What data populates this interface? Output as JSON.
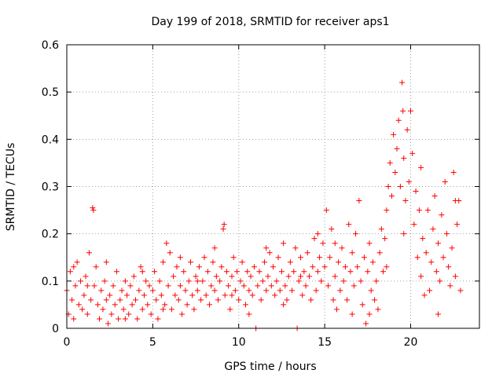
{
  "chart_data": {
    "type": "scatter",
    "title": "Day 199 of 2018, SRMTID for receiver aps1",
    "xlabel": "GPS time / hours",
    "ylabel": "SRMTID / TECUs",
    "xlim": [
      0,
      24
    ],
    "ylim": [
      0,
      0.6
    ],
    "x_ticks": [
      0,
      5,
      10,
      15,
      20
    ],
    "y_ticks": [
      0,
      0.1,
      0.2,
      0.3,
      0.4,
      0.5,
      0.6
    ],
    "y_tick_labels": [
      "0",
      "0.1",
      "0.2",
      "0.3",
      "0.4",
      "0.5",
      "0.6"
    ],
    "grid": true,
    "marker": "+",
    "series": [
      {
        "name": "SRMTID",
        "color": "#ff0000",
        "points": [
          [
            0.0,
            0.08
          ],
          [
            0.1,
            0.03
          ],
          [
            0.2,
            0.12
          ],
          [
            0.3,
            0.06
          ],
          [
            0.4,
            0.02
          ],
          [
            0.5,
            0.09
          ],
          [
            0.6,
            0.14
          ],
          [
            0.7,
            0.05
          ],
          [
            0.8,
            0.1
          ],
          [
            0.9,
            0.04
          ],
          [
            1.0,
            0.07
          ],
          [
            1.1,
            0.11
          ],
          [
            1.2,
            0.03
          ],
          [
            1.3,
            0.16
          ],
          [
            1.4,
            0.06
          ],
          [
            1.5,
            0.255
          ],
          [
            1.55,
            0.25
          ],
          [
            1.6,
            0.09
          ],
          [
            1.7,
            0.13
          ],
          [
            1.8,
            0.05
          ],
          [
            1.9,
            0.02
          ],
          [
            2.0,
            0.08
          ],
          [
            2.1,
            0.04
          ],
          [
            2.2,
            0.1
          ],
          [
            2.3,
            0.06
          ],
          [
            2.4,
            0.01
          ],
          [
            2.5,
            0.07
          ],
          [
            2.6,
            0.03
          ],
          [
            2.7,
            0.09
          ],
          [
            2.8,
            0.05
          ],
          [
            2.9,
            0.12
          ],
          [
            3.0,
            0.02
          ],
          [
            3.1,
            0.06
          ],
          [
            3.2,
            0.08
          ],
          [
            3.3,
            0.04
          ],
          [
            3.4,
            0.1
          ],
          [
            3.5,
            0.07
          ],
          [
            3.6,
            0.03
          ],
          [
            3.7,
            0.09
          ],
          [
            3.8,
            0.05
          ],
          [
            3.9,
            0.11
          ],
          [
            4.0,
            0.06
          ],
          [
            4.1,
            0.02
          ],
          [
            4.2,
            0.08
          ],
          [
            4.3,
            0.13
          ],
          [
            4.4,
            0.04
          ],
          [
            4.5,
            0.07
          ],
          [
            4.6,
            0.1
          ],
          [
            4.7,
            0.05
          ],
          [
            4.8,
            0.09
          ],
          [
            4.9,
            0.03
          ],
          [
            5.0,
            0.08
          ],
          [
            5.1,
            0.12
          ],
          [
            5.2,
            0.06
          ],
          [
            5.3,
            0.02
          ],
          [
            5.4,
            0.1
          ],
          [
            5.5,
            0.07
          ],
          [
            5.6,
            0.14
          ],
          [
            5.7,
            0.05
          ],
          [
            5.8,
            0.18
          ],
          [
            5.9,
            0.09
          ],
          [
            6.0,
            0.16
          ],
          [
            6.1,
            0.04
          ],
          [
            6.2,
            0.11
          ],
          [
            6.3,
            0.07
          ],
          [
            6.4,
            0.13
          ],
          [
            6.5,
            0.06
          ],
          [
            6.6,
            0.09
          ],
          [
            6.7,
            0.03
          ],
          [
            6.8,
            0.12
          ],
          [
            6.9,
            0.08
          ],
          [
            7.0,
            0.05
          ],
          [
            7.1,
            0.1
          ],
          [
            7.2,
            0.14
          ],
          [
            7.3,
            0.07
          ],
          [
            7.4,
            0.04
          ],
          [
            7.5,
            0.11
          ],
          [
            7.6,
            0.08
          ],
          [
            7.7,
            0.13
          ],
          [
            7.8,
            0.06
          ],
          [
            7.9,
            0.1
          ],
          [
            8.0,
            0.15
          ],
          [
            8.1,
            0.07
          ],
          [
            8.2,
            0.12
          ],
          [
            8.3,
            0.05
          ],
          [
            8.4,
            0.09
          ],
          [
            8.5,
            0.14
          ],
          [
            8.6,
            0.08
          ],
          [
            8.7,
            0.11
          ],
          [
            8.8,
            0.06
          ],
          [
            8.9,
            0.1
          ],
          [
            9.0,
            0.13
          ],
          [
            9.1,
            0.21
          ],
          [
            9.15,
            0.22
          ],
          [
            9.2,
            0.07
          ],
          [
            9.3,
            0.12
          ],
          [
            9.4,
            0.09
          ],
          [
            9.5,
            0.04
          ],
          [
            9.6,
            0.11
          ],
          [
            9.7,
            0.15
          ],
          [
            9.8,
            0.08
          ],
          [
            9.9,
            0.12
          ],
          [
            10.0,
            0.06
          ],
          [
            10.1,
            0.1
          ],
          [
            10.2,
            0.14
          ],
          [
            10.3,
            0.09
          ],
          [
            10.4,
            0.05
          ],
          [
            10.5,
            0.12
          ],
          [
            10.6,
            0.08
          ],
          [
            10.7,
            0.11
          ],
          [
            10.8,
            0.07
          ],
          [
            10.9,
            0.13
          ],
          [
            11.0,
            0.0
          ],
          [
            11.1,
            0.09
          ],
          [
            11.2,
            0.12
          ],
          [
            11.3,
            0.06
          ],
          [
            11.4,
            0.1
          ],
          [
            11.5,
            0.14
          ],
          [
            11.6,
            0.08
          ],
          [
            11.7,
            0.11
          ],
          [
            11.8,
            0.16
          ],
          [
            11.9,
            0.09
          ],
          [
            12.0,
            0.13
          ],
          [
            12.1,
            0.07
          ],
          [
            12.2,
            0.1
          ],
          [
            12.3,
            0.15
          ],
          [
            12.4,
            0.08
          ],
          [
            12.5,
            0.12
          ],
          [
            12.6,
            0.18
          ],
          [
            12.7,
            0.09
          ],
          [
            12.8,
            0.06
          ],
          [
            12.9,
            0.11
          ],
          [
            13.0,
            0.14
          ],
          [
            13.1,
            0.08
          ],
          [
            13.2,
            0.12
          ],
          [
            13.3,
            0.17
          ],
          [
            13.4,
            0.0
          ],
          [
            13.5,
            0.1
          ],
          [
            13.6,
            0.15
          ],
          [
            13.7,
            0.07
          ],
          [
            13.8,
            0.12
          ],
          [
            13.9,
            0.09
          ],
          [
            14.0,
            0.16
          ],
          [
            14.1,
            0.11
          ],
          [
            14.2,
            0.06
          ],
          [
            14.3,
            0.13
          ],
          [
            14.4,
            0.19
          ],
          [
            14.5,
            0.08
          ],
          [
            14.6,
            0.12
          ],
          [
            14.7,
            0.15
          ],
          [
            14.8,
            0.1
          ],
          [
            14.9,
            0.18
          ],
          [
            15.0,
            0.13
          ],
          [
            15.1,
            0.25
          ],
          [
            15.2,
            0.09
          ],
          [
            15.3,
            0.15
          ],
          [
            15.4,
            0.21
          ],
          [
            15.5,
            0.06
          ],
          [
            15.6,
            0.11
          ],
          [
            15.7,
            0.04
          ],
          [
            15.8,
            0.14
          ],
          [
            15.9,
            0.08
          ],
          [
            16.0,
            0.17
          ],
          [
            16.1,
            0.1
          ],
          [
            16.2,
            0.13
          ],
          [
            16.3,
            0.06
          ],
          [
            16.4,
            0.22
          ],
          [
            16.5,
            0.12
          ],
          [
            16.6,
            0.16
          ],
          [
            16.7,
            0.09
          ],
          [
            16.8,
            0.2
          ],
          [
            16.9,
            0.13
          ],
          [
            17.0,
            0.27
          ],
          [
            17.1,
            0.1
          ],
          [
            17.2,
            0.05
          ],
          [
            17.3,
            0.15
          ],
          [
            17.4,
            0.01
          ],
          [
            17.5,
            0.12
          ],
          [
            17.6,
            0.18
          ],
          [
            17.7,
            0.08
          ],
          [
            17.8,
            0.14
          ],
          [
            17.9,
            0.06
          ],
          [
            18.0,
            0.1
          ],
          [
            18.1,
            0.04
          ],
          [
            18.2,
            0.16
          ],
          [
            18.3,
            0.21
          ],
          [
            18.4,
            0.12
          ],
          [
            18.5,
            0.19
          ],
          [
            18.6,
            0.25
          ],
          [
            18.7,
            0.3
          ],
          [
            18.8,
            0.35
          ],
          [
            18.9,
            0.28
          ],
          [
            19.0,
            0.41
          ],
          [
            19.1,
            0.33
          ],
          [
            19.2,
            0.38
          ],
          [
            19.3,
            0.44
          ],
          [
            19.4,
            0.3
          ],
          [
            19.5,
            0.52
          ],
          [
            19.55,
            0.46
          ],
          [
            19.6,
            0.36
          ],
          [
            19.7,
            0.27
          ],
          [
            19.8,
            0.42
          ],
          [
            19.9,
            0.31
          ],
          [
            20.0,
            0.46
          ],
          [
            20.1,
            0.37
          ],
          [
            20.2,
            0.22
          ],
          [
            20.3,
            0.29
          ],
          [
            20.4,
            0.15
          ],
          [
            20.5,
            0.25
          ],
          [
            20.6,
            0.11
          ],
          [
            20.7,
            0.19
          ],
          [
            20.8,
            0.07
          ],
          [
            20.9,
            0.16
          ],
          [
            21.0,
            0.25
          ],
          [
            21.1,
            0.08
          ],
          [
            21.2,
            0.14
          ],
          [
            21.3,
            0.21
          ],
          [
            21.4,
            0.28
          ],
          [
            21.5,
            0.12
          ],
          [
            21.6,
            0.18
          ],
          [
            21.7,
            0.1
          ],
          [
            21.8,
            0.24
          ],
          [
            21.9,
            0.15
          ],
          [
            22.0,
            0.31
          ],
          [
            22.1,
            0.2
          ],
          [
            22.2,
            0.13
          ],
          [
            22.3,
            0.09
          ],
          [
            22.4,
            0.17
          ],
          [
            22.5,
            0.33
          ],
          [
            22.6,
            0.11
          ],
          [
            22.7,
            0.22
          ],
          [
            22.8,
            0.27
          ],
          [
            22.9,
            0.08
          ],
          [
            0.4,
            0.13
          ],
          [
            1.2,
            0.09
          ],
          [
            2.3,
            0.14
          ],
          [
            3.4,
            0.02
          ],
          [
            4.4,
            0.12
          ],
          [
            5.6,
            0.04
          ],
          [
            6.6,
            0.15
          ],
          [
            7.6,
            0.1
          ],
          [
            8.6,
            0.17
          ],
          [
            9.6,
            0.07
          ],
          [
            10.6,
            0.03
          ],
          [
            11.6,
            0.17
          ],
          [
            12.6,
            0.05
          ],
          [
            13.6,
            0.11
          ],
          [
            14.6,
            0.2
          ],
          [
            15.6,
            0.18
          ],
          [
            16.6,
            0.03
          ],
          [
            17.6,
            0.03
          ],
          [
            18.6,
            0.13
          ],
          [
            19.6,
            0.2
          ],
          [
            20.6,
            0.34
          ],
          [
            21.6,
            0.03
          ],
          [
            22.6,
            0.27
          ]
        ]
      }
    ]
  }
}
